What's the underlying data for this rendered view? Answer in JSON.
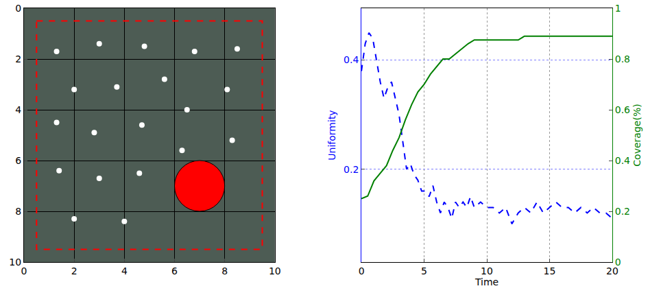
{
  "chart_data": [
    {
      "type": "scatter",
      "xlim": [
        0,
        10
      ],
      "ylim": [
        10,
        0
      ],
      "xticks": [
        0,
        2,
        4,
        6,
        8,
        10
      ],
      "yticks": [
        0,
        2,
        4,
        6,
        8,
        10
      ],
      "grid": true,
      "color": "#ffffff",
      "marker": "circle",
      "x": [
        1.3,
        3,
        4.8,
        6.8,
        8.5,
        2,
        3.7,
        5.6,
        8.1,
        6.5,
        1.3,
        2.8,
        4.7,
        8.3,
        6.3,
        1.4,
        3,
        4.6,
        2,
        4
      ],
      "y": [
        1.7,
        1.4,
        1.5,
        1.7,
        1.6,
        3.2,
        3.1,
        2.8,
        3.2,
        4,
        4.5,
        4.9,
        4.6,
        5.2,
        5.6,
        6.4,
        6.7,
        6.5,
        8.3,
        8.4
      ],
      "boundary": {
        "x0": 0.5,
        "x1": 9.5,
        "y0": 0.5,
        "y1": 9.5,
        "color": "#ff0000",
        "line_style": "dash"
      },
      "obstacle": {
        "x": 7,
        "y": 7,
        "r": 1,
        "color": "#ff0000"
      }
    },
    {
      "type": "line",
      "x_label": "Time",
      "y_label": "Uniformity",
      "y2_label": "Coverage(%)",
      "xlim": [
        0,
        20
      ],
      "xticks": [
        0,
        5,
        10,
        15,
        20
      ],
      "ylim": [
        0.03,
        0.495
      ],
      "yticks": [
        0.2,
        0.4
      ],
      "y2lim": [
        0,
        1
      ],
      "y2ticks": [
        0,
        0.2,
        0.4,
        0.6,
        0.8,
        1
      ],
      "grid": true,
      "series": [
        {
          "color": "#0000ff",
          "line_style": "dash",
          "x": [
            0,
            0.3,
            0.6,
            0.9,
            1.2,
            1.5,
            1.8,
            2.1,
            2.4,
            2.7,
            3.0,
            3.3,
            3.6,
            3.9,
            4.2,
            4.5,
            4.8,
            5.1,
            5.4,
            5.7,
            6.0,
            6.3,
            6.6,
            6.9,
            7.2,
            7.5,
            7.8,
            8.1,
            8.4,
            8.7,
            9.0,
            9.5,
            10,
            10.5,
            11,
            11.5,
            12,
            12.5,
            13,
            13.5,
            14,
            14.5,
            15,
            15.5,
            16,
            16.5,
            17,
            17.5,
            18,
            18.5,
            19,
            19.5,
            20
          ],
          "values": [
            0.38,
            0.43,
            0.45,
            0.44,
            0.4,
            0.36,
            0.33,
            0.35,
            0.36,
            0.33,
            0.3,
            0.25,
            0.2,
            0.21,
            0.19,
            0.18,
            0.16,
            0.16,
            0.15,
            0.17,
            0.14,
            0.12,
            0.14,
            0.13,
            0.11,
            0.14,
            0.13,
            0.14,
            0.13,
            0.15,
            0.13,
            0.14,
            0.13,
            0.13,
            0.12,
            0.13,
            0.1,
            0.12,
            0.13,
            0.12,
            0.14,
            0.12,
            0.13,
            0.14,
            0.13,
            0.13,
            0.12,
            0.13,
            0.12,
            0.13,
            0.12,
            0.12,
            0.11
          ]
        },
        {
          "color": "#008000",
          "line_style": "solid",
          "axis": "y2",
          "x": [
            0,
            0.5,
            1,
            1.5,
            2,
            2.5,
            3,
            3.5,
            4,
            4.5,
            5,
            5.5,
            6,
            6.5,
            7,
            7.5,
            8,
            8.5,
            9,
            10,
            11,
            12,
            12.5,
            13,
            14,
            15,
            16,
            17,
            18,
            19,
            20
          ],
          "values": [
            0.25,
            0.26,
            0.32,
            0.35,
            0.38,
            0.44,
            0.49,
            0.56,
            0.62,
            0.67,
            0.7,
            0.74,
            0.77,
            0.8,
            0.8,
            0.82,
            0.84,
            0.86,
            0.875,
            0.875,
            0.875,
            0.875,
            0.875,
            0.89,
            0.89,
            0.89,
            0.89,
            0.89,
            0.89,
            0.89,
            0.89
          ]
        }
      ]
    }
  ]
}
